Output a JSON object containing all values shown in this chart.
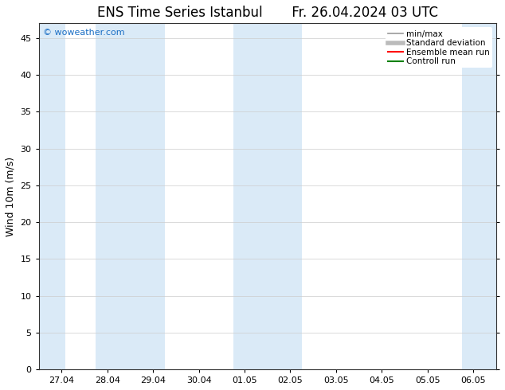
{
  "title_left": "ENS Time Series Istanbul",
  "title_right": "Fr. 26.04.2024 03 UTC",
  "ylabel": "Wind 10m (m/s)",
  "ylim": [
    0,
    47
  ],
  "yticks": [
    0,
    5,
    10,
    15,
    20,
    25,
    30,
    35,
    40,
    45
  ],
  "xtick_labels": [
    "27.04",
    "28.04",
    "29.04",
    "30.04",
    "01.05",
    "02.05",
    "03.05",
    "04.05",
    "05.05",
    "06.05"
  ],
  "watermark": "© woweather.com",
  "watermark_color": "#1a6ec4",
  "bg_color": "#ffffff",
  "plot_bg_color": "#ffffff",
  "shaded_color": "#daeaf7",
  "shaded_xranges": [
    [
      -0.5,
      0.08
    ],
    [
      0.75,
      2.25
    ],
    [
      3.75,
      5.25
    ],
    [
      8.75,
      9.5
    ]
  ],
  "legend_entries": [
    {
      "label": "min/max",
      "color": "#999999",
      "lw": 1.2,
      "style": "solid"
    },
    {
      "label": "Standard deviation",
      "color": "#bbbbbb",
      "lw": 4.0,
      "style": "solid"
    },
    {
      "label": "Ensemble mean run",
      "color": "#ff0000",
      "lw": 1.5,
      "style": "solid"
    },
    {
      "label": "Controll run",
      "color": "#008000",
      "lw": 1.5,
      "style": "solid"
    }
  ],
  "title_fontsize": 12,
  "tick_fontsize": 8,
  "ylabel_fontsize": 9,
  "legend_fontsize": 7.5,
  "watermark_fontsize": 8
}
